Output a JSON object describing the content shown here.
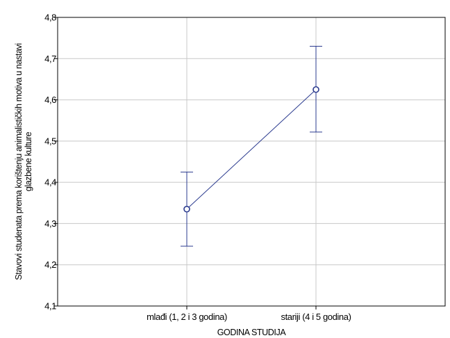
{
  "chart_data": {
    "type": "line",
    "title": "",
    "xlabel": "GODINA STUDIJA",
    "ylabel_lines": [
      "Stavovi studenata prema korištenju animalističkih motiva u nastavi",
      "glazbene kulture"
    ],
    "categories": [
      "mlađi (1, 2 i 3 godina)",
      "stariji (4 i 5 godina)"
    ],
    "series": [
      {
        "values": [
          4.335,
          4.625
        ],
        "error_low": [
          4.245,
          4.522
        ],
        "error_high": [
          4.425,
          4.73
        ]
      }
    ],
    "ylim": [
      4.1,
      4.8
    ],
    "yticks": [
      "4,1",
      "4,2",
      "4,3",
      "4,4",
      "4,5",
      "4,6",
      "4,7",
      "4,8"
    ],
    "grid": true,
    "legend": "none",
    "colors": {
      "series": "#2b3b8f",
      "grid": "#c8c8c8",
      "axis": "#000000"
    }
  }
}
